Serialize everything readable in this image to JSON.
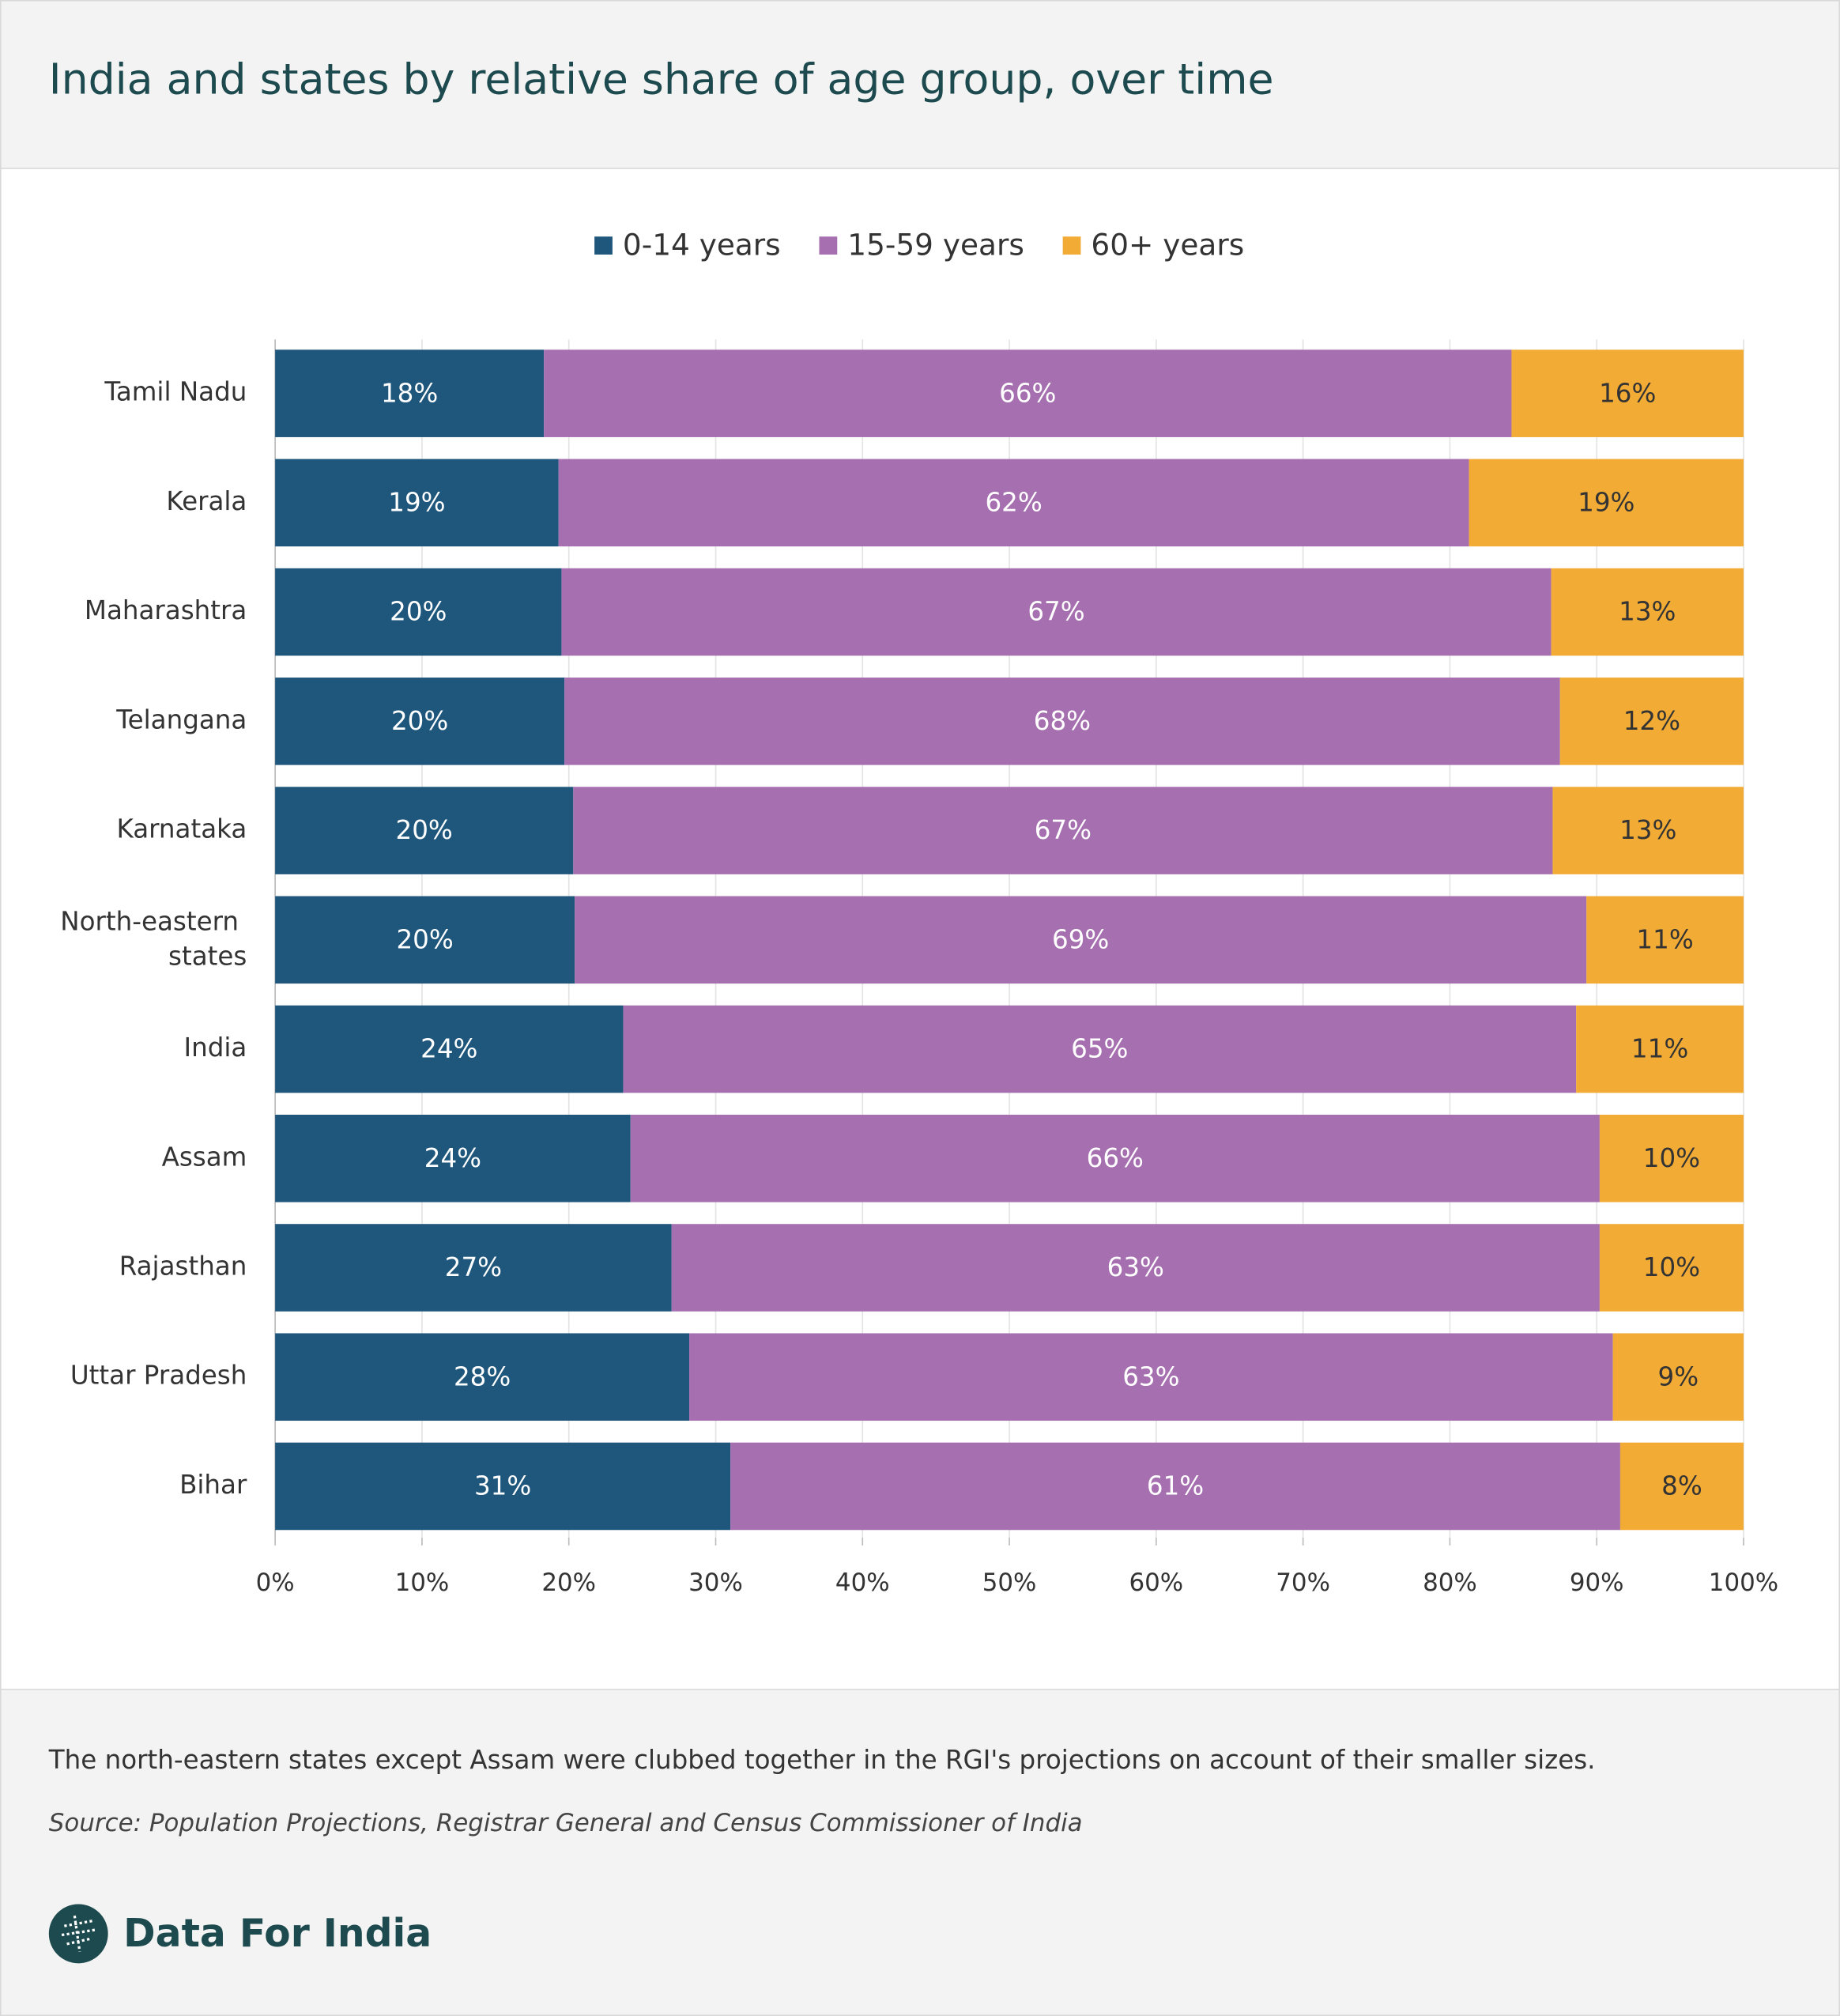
{
  "chart_data": {
    "type": "stacked-bar-horizontal",
    "title": "India and states by relative share of age group, over time",
    "categories": [
      "Tamil Nadu",
      "Kerala",
      "Maharashtra",
      "Telangana",
      "Karnataka",
      "North-eastern states",
      "India",
      "Assam",
      "Rajasthan",
      "Uttar Pradesh",
      "Bihar"
    ],
    "series": [
      {
        "name": "0-14 years",
        "color": "#1f567c",
        "values": [
          18.3,
          19.3,
          19.5,
          19.7,
          20.3,
          20.4,
          23.7,
          24.2,
          27.0,
          28.2,
          31.0
        ],
        "value_labels": [
          "18%",
          "19%",
          "20%",
          "20%",
          "20%",
          "20%",
          "24%",
          "24%",
          "27%",
          "28%",
          "31%"
        ]
      },
      {
        "name": "15-59 years",
        "color": "#a66fb0",
        "values": [
          65.9,
          62.0,
          67.4,
          67.8,
          66.7,
          68.9,
          64.9,
          66.0,
          63.2,
          62.9,
          60.6
        ],
        "value_labels": [
          "66%",
          "62%",
          "67%",
          "68%",
          "67%",
          "69%",
          "65%",
          "66%",
          "63%",
          "63%",
          "61%"
        ]
      },
      {
        "name": "60+ years",
        "color": "#f2ab35",
        "values": [
          15.8,
          18.7,
          13.1,
          12.5,
          13.0,
          10.7,
          11.4,
          9.8,
          9.8,
          8.9,
          8.4
        ],
        "value_labels": [
          "16%",
          "19%",
          "13%",
          "12%",
          "13%",
          "11%",
          "11%",
          "10%",
          "10%",
          "9%",
          "8%"
        ]
      }
    ],
    "xlim": [
      0,
      100
    ],
    "xticks": [
      {
        "value": 0,
        "label": "0%"
      },
      {
        "value": 10,
        "label": "10%"
      },
      {
        "value": 20,
        "label": "20%"
      },
      {
        "value": 30,
        "label": "30%"
      },
      {
        "value": 40,
        "label": "40%"
      },
      {
        "value": 50,
        "label": "50%"
      },
      {
        "value": 60,
        "label": "60%"
      },
      {
        "value": 70,
        "label": "70%"
      },
      {
        "value": 80,
        "label": "80%"
      },
      {
        "value": 90,
        "label": "90%"
      },
      {
        "value": 100,
        "label": "100%"
      }
    ],
    "grid": true,
    "legend": "top",
    "note": "The north-eastern states except Assam were clubbed together in the RGI's projections on account of their smaller sizes.",
    "source": "Source: Population Projections, Registrar General and Census Commissioner of India",
    "brand": "Data For India"
  }
}
